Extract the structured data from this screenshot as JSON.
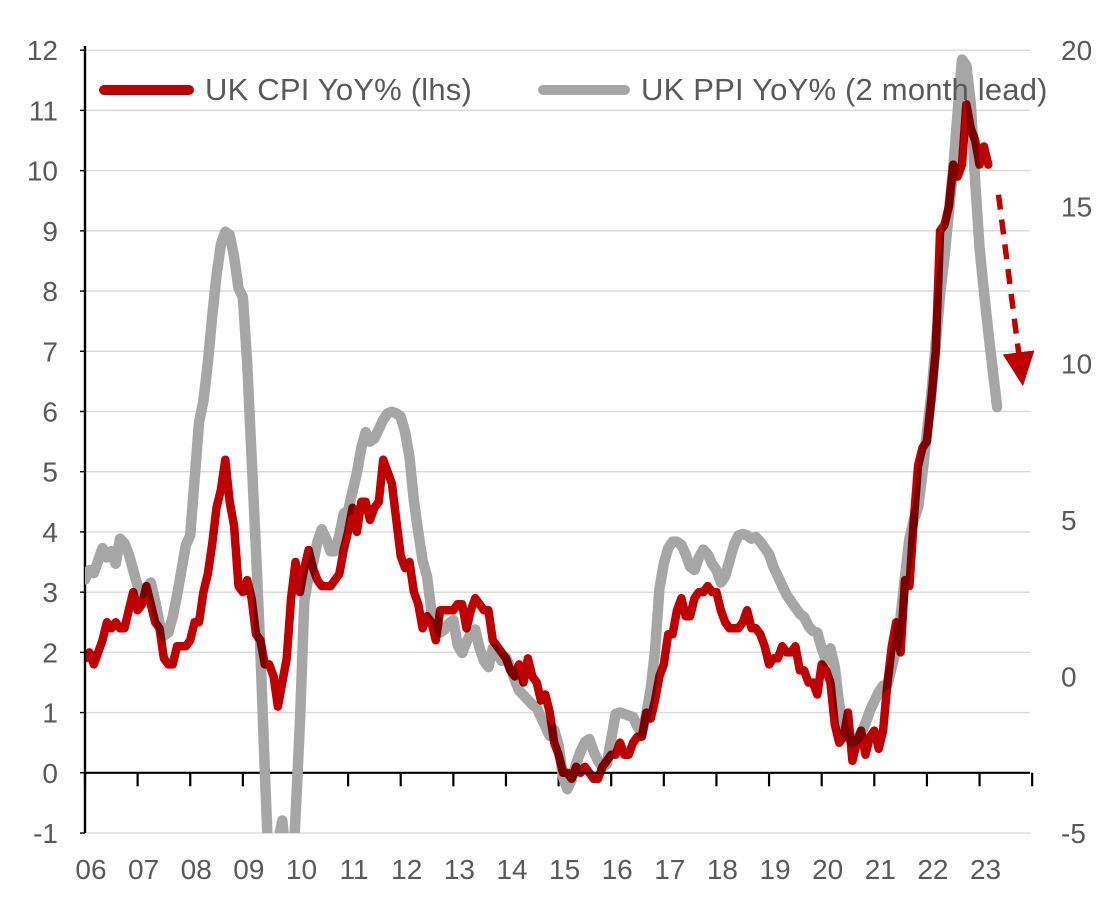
{
  "legend": {
    "items": [
      {
        "id": "cpi",
        "label": "UK CPI YoY% (lhs)",
        "color": "#c00000"
      },
      {
        "id": "ppi",
        "label": "UK PPI YoY% (2 month lead)",
        "color": "#a6a6a6"
      }
    ]
  },
  "colors": {
    "cpi_line": "#c00000",
    "ppi_line": "#a6a6a6",
    "gridline": "#d9d9d9",
    "axis": "#000000",
    "tick_label": "#595959",
    "arrow": "#c00000",
    "background": "#ffffff"
  },
  "chart_data": {
    "type": "line",
    "title": "",
    "x_axis": {
      "start_year": 2006,
      "frequency": "monthly",
      "tick_labels": [
        "06",
        "07",
        "08",
        "09",
        "10",
        "11",
        "12",
        "13",
        "14",
        "15",
        "16",
        "17",
        "18",
        "19",
        "20",
        "21",
        "22",
        "23"
      ]
    },
    "left_axis": {
      "label": "UK CPI YoY%",
      "min": -1,
      "max": 12,
      "tick_step": 1,
      "tick_labels": [
        "-1",
        "0",
        "1",
        "2",
        "3",
        "4",
        "5",
        "6",
        "7",
        "8",
        "9",
        "10",
        "11",
        "12"
      ]
    },
    "right_axis": {
      "label": "UK PPI YoY%",
      "min": -5,
      "max": 20,
      "tick_step": 5,
      "tick_labels": [
        "-5",
        "0",
        "5",
        "10",
        "15",
        "20"
      ]
    },
    "grid": "horizontal",
    "legend_position": "top",
    "series": [
      {
        "name": "UK CPI YoY% (lhs)",
        "axis": "left",
        "color": "#c00000",
        "start": "2006-01",
        "end": "2023-03",
        "values": [
          1.9,
          2.0,
          1.8,
          2.0,
          2.2,
          2.5,
          2.4,
          2.5,
          2.4,
          2.4,
          2.7,
          3.0,
          2.7,
          2.8,
          3.1,
          2.8,
          2.5,
          2.4,
          1.9,
          1.8,
          1.8,
          2.1,
          2.1,
          2.1,
          2.2,
          2.5,
          2.5,
          3.0,
          3.3,
          3.8,
          4.4,
          4.7,
          5.2,
          4.5,
          4.1,
          3.1,
          3.0,
          3.2,
          2.9,
          2.3,
          2.2,
          1.8,
          1.8,
          1.6,
          1.1,
          1.5,
          1.9,
          2.9,
          3.5,
          3.0,
          3.4,
          3.7,
          3.4,
          3.2,
          3.1,
          3.1,
          3.1,
          3.2,
          3.3,
          3.7,
          4.0,
          4.4,
          4.0,
          4.5,
          4.5,
          4.2,
          4.4,
          4.5,
          5.2,
          5.0,
          4.8,
          4.2,
          3.6,
          3.4,
          3.5,
          3.0,
          2.8,
          2.4,
          2.6,
          2.5,
          2.2,
          2.7,
          2.7,
          2.7,
          2.7,
          2.8,
          2.8,
          2.4,
          2.7,
          2.9,
          2.8,
          2.7,
          2.7,
          2.2,
          2.1,
          2.0,
          1.9,
          1.7,
          1.6,
          1.8,
          1.5,
          1.9,
          1.6,
          1.5,
          1.2,
          1.3,
          1.0,
          0.5,
          0.3,
          0.0,
          0.0,
          -0.1,
          0.1,
          0.0,
          0.1,
          0.0,
          -0.1,
          -0.1,
          0.1,
          0.2,
          0.3,
          0.3,
          0.5,
          0.3,
          0.3,
          0.5,
          0.6,
          0.6,
          1.0,
          0.9,
          1.2,
          1.6,
          1.8,
          2.3,
          2.3,
          2.7,
          2.9,
          2.6,
          2.6,
          2.9,
          3.0,
          3.0,
          3.1,
          3.0,
          3.0,
          2.7,
          2.5,
          2.4,
          2.4,
          2.4,
          2.5,
          2.7,
          2.4,
          2.4,
          2.3,
          2.1,
          1.8,
          1.9,
          1.9,
          2.1,
          2.0,
          2.0,
          2.1,
          1.7,
          1.7,
          1.5,
          1.5,
          1.3,
          1.8,
          1.7,
          1.5,
          0.8,
          0.5,
          0.6,
          1.0,
          0.2,
          0.5,
          0.7,
          0.3,
          0.6,
          0.7,
          0.4,
          0.7,
          1.5,
          2.1,
          2.5,
          2.0,
          3.2,
          3.1,
          4.2,
          5.1,
          5.4,
          5.5,
          6.2,
          7.0,
          9.0,
          9.1,
          9.4,
          10.1,
          9.9,
          10.1,
          11.1,
          10.7,
          10.5,
          10.1,
          10.4,
          10.1
        ]
      },
      {
        "name": "UK PPI YoY% (2 month lead)",
        "axis": "right",
        "color": "#a6a6a6",
        "start": "2006-01",
        "end": "2023-05",
        "values": [
          3.1,
          3.4,
          3.3,
          3.7,
          4.1,
          3.8,
          4.0,
          3.6,
          4.4,
          4.25,
          3.9,
          3.4,
          2.9,
          2.65,
          2.8,
          3.0,
          2.4,
          1.7,
          1.3,
          1.4,
          1.9,
          2.6,
          3.4,
          4.2,
          4.5,
          6.3,
          8.1,
          8.8,
          10.0,
          11.5,
          12.8,
          13.8,
          14.2,
          14.1,
          13.4,
          12.4,
          12.1,
          10.0,
          7.0,
          4.0,
          0.8,
          -3.0,
          -6.5,
          -7.5,
          -5.3,
          -4.6,
          -6.0,
          -7.0,
          -4.5,
          -1.5,
          2.4,
          3.2,
          3.6,
          4.3,
          4.7,
          4.4,
          4.0,
          4.0,
          4.5,
          5.2,
          5.3,
          5.9,
          6.5,
          7.3,
          7.8,
          7.5,
          7.6,
          7.9,
          8.2,
          8.4,
          8.45,
          8.4,
          8.3,
          7.8,
          7.0,
          5.6,
          4.6,
          3.7,
          3.2,
          2.1,
          1.9,
          1.4,
          1.5,
          1.7,
          1.8,
          1.0,
          0.75,
          1.1,
          1.4,
          1.5,
          0.9,
          0.5,
          0.3,
          0.9,
          0.75,
          0.5,
          0.6,
          0.3,
          -0.1,
          -0.45,
          -0.6,
          -0.75,
          -0.9,
          -1.0,
          -1.3,
          -1.6,
          -1.9,
          -1.7,
          -2.2,
          -3.2,
          -3.6,
          -3.3,
          -2.8,
          -2.4,
          -2.1,
          -2.0,
          -2.4,
          -2.7,
          -2.9,
          -2.8,
          -2.0,
          -1.2,
          -1.15,
          -1.2,
          -1.25,
          -1.3,
          -1.6,
          -1.8,
          -1.2,
          -0.4,
          0.8,
          2.8,
          3.6,
          4.1,
          4.3,
          4.3,
          4.2,
          3.9,
          3.5,
          3.4,
          3.8,
          4.05,
          3.9,
          3.6,
          3.4,
          3.0,
          3.2,
          3.7,
          4.2,
          4.5,
          4.55,
          4.5,
          4.4,
          4.45,
          4.3,
          4.1,
          3.9,
          3.5,
          3.2,
          2.9,
          2.6,
          2.4,
          2.2,
          2.0,
          1.9,
          1.6,
          1.45,
          1.4,
          0.9,
          0.5,
          0.9,
          0.3,
          -0.9,
          -1.6,
          -1.9,
          -2.1,
          -2.0,
          -1.8,
          -1.5,
          -1.1,
          -0.8,
          -0.5,
          -0.3,
          -0.25,
          0.3,
          0.9,
          1.9,
          3.2,
          4.4,
          5.0,
          5.4,
          6.5,
          7.8,
          9.0,
          10.6,
          12.2,
          13.4,
          14.8,
          16.2,
          18.0,
          19.7,
          19.5,
          18.3,
          15.8,
          13.7,
          12.3,
          11.0,
          9.8,
          8.6
        ]
      }
    ],
    "annotations": [
      {
        "type": "arrow",
        "style": "dashed",
        "color": "#c00000",
        "axis": "left",
        "from": {
          "x_year": 2023.36,
          "value": 9.6
        },
        "to": {
          "x_year": 2023.82,
          "value": 6.45
        }
      }
    ]
  }
}
